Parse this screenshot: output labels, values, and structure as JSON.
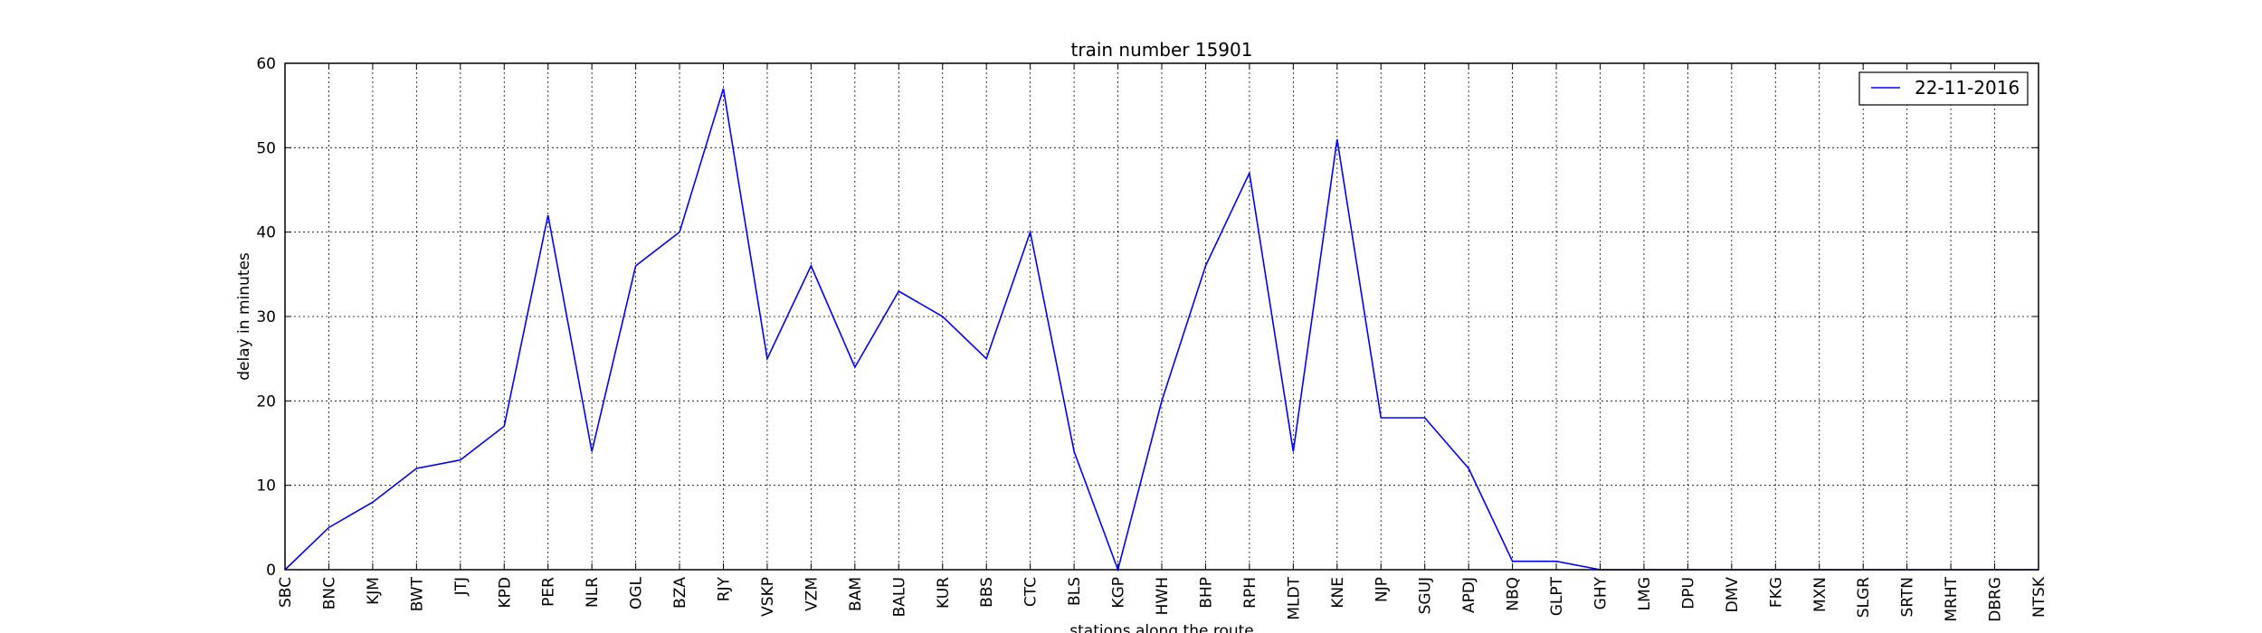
{
  "chart_data": {
    "type": "line",
    "title": "train number 15901",
    "xlabel": "stations along the route",
    "ylabel": "delay in minutes",
    "ylim": [
      0,
      60
    ],
    "yticks": [
      0,
      10,
      20,
      30,
      40,
      50,
      60
    ],
    "grid": true,
    "legend_position": "top-right",
    "line_color": "#0000ff",
    "categories": [
      "SBC",
      "BNC",
      "KJM",
      "BWT",
      "JTJ",
      "KPD",
      "PER",
      "NLR",
      "OGL",
      "BZA",
      "RJY",
      "VSKP",
      "VZM",
      "BAM",
      "BALU",
      "KUR",
      "BBS",
      "CTC",
      "BLS",
      "KGP",
      "HWH",
      "BHP",
      "RPH",
      "MLDT",
      "KNE",
      "NJP",
      "SGUJ",
      "APDJ",
      "NBQ",
      "GLPT",
      "GHY",
      "LMG",
      "DPU",
      "DMV",
      "FKG",
      "MXN",
      "SLGR",
      "SRTN",
      "MRHT",
      "DBRG",
      "NTSK"
    ],
    "series": [
      {
        "name": "22-11-2016",
        "values": [
          0,
          5,
          8,
          12,
          13,
          17,
          42,
          14,
          36,
          40,
          57,
          25,
          36,
          24,
          33,
          30,
          25,
          40,
          14,
          0,
          20,
          36,
          47,
          14,
          51,
          18,
          18,
          12,
          1,
          1,
          0,
          0,
          0,
          0,
          0,
          0,
          0,
          0,
          0,
          0,
          0
        ]
      }
    ]
  }
}
